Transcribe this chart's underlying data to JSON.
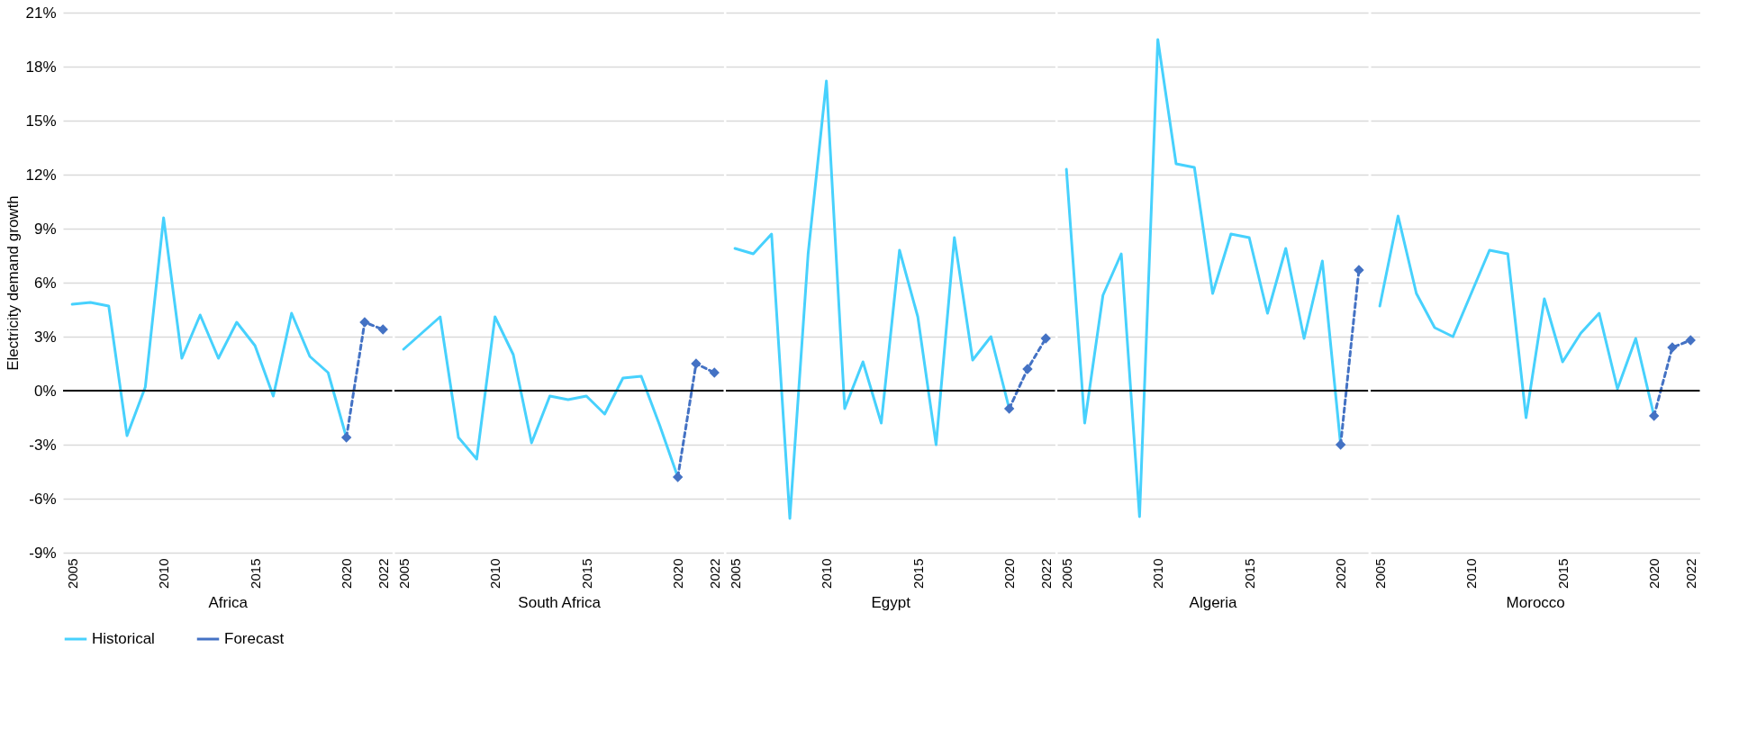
{
  "chart_data": [
    {
      "type": "line",
      "xlabel": "Africa",
      "ylabel": "Electricity demand growth",
      "categories": [
        "2005",
        null,
        null,
        null,
        null,
        "2010",
        null,
        null,
        null,
        null,
        "2015",
        null,
        null,
        null,
        null,
        "2020",
        null,
        "2022"
      ],
      "ylim": [
        -9,
        21
      ],
      "yticks": [
        {
          "value": -9,
          "label": "-9%"
        },
        {
          "value": -6,
          "label": "-6%"
        },
        {
          "value": -3,
          "label": "-3%"
        },
        {
          "value": 0,
          "label": "0%"
        },
        {
          "value": 3,
          "label": "3%"
        },
        {
          "value": 6,
          "label": "6%"
        },
        {
          "value": 9,
          "label": "9%"
        },
        {
          "value": 12,
          "label": "12%"
        },
        {
          "value": 15,
          "label": "15%"
        },
        {
          "value": 18,
          "label": "18%"
        },
        {
          "value": 21,
          "label": "21%"
        }
      ],
      "grid": "y",
      "legend": "bottom",
      "ref_lines": [
        {
          "axis": "y",
          "value": 0,
          "color": "#000000"
        }
      ],
      "series": [
        {
          "name": "Historical",
          "color": "#47d1fd",
          "marker": "none",
          "line_style": "solid",
          "values": [
            4.8,
            4.9,
            4.7,
            -2.5,
            0.2,
            9.6,
            1.8,
            4.2,
            1.8,
            3.8,
            2.5,
            -0.3,
            4.3,
            1.9,
            1.0,
            -2.6,
            null,
            null
          ]
        },
        {
          "name": "Forecast",
          "color": "#4472c4",
          "marker": "diamond",
          "line_style": "dashed",
          "values": [
            null,
            null,
            null,
            null,
            null,
            null,
            null,
            null,
            null,
            null,
            null,
            null,
            null,
            null,
            null,
            -2.6,
            3.8,
            3.4
          ]
        }
      ]
    },
    {
      "type": "line",
      "xlabel": "South Africa",
      "categories": [
        "2005",
        null,
        null,
        null,
        null,
        "2010",
        null,
        null,
        null,
        null,
        "2015",
        null,
        null,
        null,
        null,
        "2020",
        null,
        "2022"
      ],
      "ylim": [
        -9,
        21
      ],
      "yticks": [
        -9,
        -6,
        -3,
        0,
        3,
        6,
        9,
        12,
        15,
        18,
        21
      ],
      "tick_labels": "x",
      "grid": "y",
      "legend": "bottom",
      "ref_lines": [
        {
          "axis": "y",
          "value": 0,
          "color": "#000000"
        }
      ],
      "series": [
        {
          "name": "Historical",
          "color": "#47d1fd",
          "marker": "none",
          "line_style": "solid",
          "values": [
            2.3,
            3.2,
            4.1,
            -2.6,
            -3.8,
            4.1,
            2.0,
            -2.9,
            -0.3,
            -0.5,
            -0.3,
            -1.3,
            0.7,
            0.8,
            -1.9,
            -4.8,
            null,
            null
          ]
        },
        {
          "name": "Forecast",
          "color": "#4472c4",
          "marker": "diamond",
          "line_style": "dashed",
          "values": [
            null,
            null,
            null,
            null,
            null,
            null,
            null,
            null,
            null,
            null,
            null,
            null,
            null,
            null,
            null,
            -4.8,
            1.5,
            1.0
          ]
        }
      ]
    },
    {
      "type": "line",
      "xlabel": "Egypt",
      "categories": [
        "2005",
        null,
        null,
        null,
        null,
        "2010",
        null,
        null,
        null,
        null,
        "2015",
        null,
        null,
        null,
        null,
        "2020",
        null,
        "2022"
      ],
      "ylim": [
        -9,
        21
      ],
      "yticks": [
        -9,
        -6,
        -3,
        0,
        3,
        6,
        9,
        12,
        15,
        18,
        21
      ],
      "tick_labels": "x",
      "grid": "y",
      "legend": "bottom",
      "ref_lines": [
        {
          "axis": "y",
          "value": 0,
          "color": "#000000"
        }
      ],
      "series": [
        {
          "name": "Historical",
          "color": "#47d1fd",
          "marker": "none",
          "line_style": "solid",
          "values": [
            7.9,
            7.6,
            8.7,
            -7.1,
            7.6,
            17.2,
            -1.0,
            1.6,
            -1.8,
            7.8,
            4.1,
            -3.0,
            8.5,
            1.7,
            3.0,
            -1.0,
            null,
            null
          ]
        },
        {
          "name": "Forecast",
          "color": "#4472c4",
          "marker": "diamond",
          "line_style": "dashed",
          "values": [
            null,
            null,
            null,
            null,
            null,
            null,
            null,
            null,
            null,
            null,
            null,
            null,
            null,
            null,
            null,
            -1.0,
            1.2,
            2.9
          ]
        }
      ]
    },
    {
      "type": "line",
      "xlabel": "Algeria",
      "categories": [
        "2005",
        null,
        null,
        null,
        null,
        "2010",
        null,
        null,
        null,
        null,
        "2015",
        null,
        null,
        null,
        null,
        "2020",
        null
      ],
      "ylim": [
        -9,
        21
      ],
      "yticks": [
        -9,
        -6,
        -3,
        0,
        3,
        6,
        9,
        12,
        15,
        18,
        21
      ],
      "tick_labels": "x",
      "grid": "y",
      "legend": "bottom",
      "ref_lines": [
        {
          "axis": "y",
          "value": 0,
          "color": "#000000"
        }
      ],
      "series": [
        {
          "name": "Historical",
          "color": "#47d1fd",
          "marker": "none",
          "line_style": "solid",
          "values": [
            12.3,
            -1.8,
            5.3,
            7.6,
            -7.0,
            19.5,
            12.6,
            12.4,
            5.4,
            8.7,
            8.5,
            4.3,
            7.9,
            2.9,
            7.2,
            -3.0,
            null
          ]
        },
        {
          "name": "Forecast",
          "color": "#4472c4",
          "marker": "diamond",
          "line_style": "dashed",
          "values": [
            null,
            null,
            null,
            null,
            null,
            null,
            null,
            null,
            null,
            null,
            null,
            null,
            null,
            null,
            null,
            -3.0,
            6.7
          ]
        }
      ]
    },
    {
      "type": "line",
      "xlabel": "Morocco",
      "categories": [
        "2005",
        null,
        null,
        null,
        null,
        "2010",
        null,
        null,
        null,
        null,
        "2015",
        null,
        null,
        null,
        null,
        "2020",
        null,
        "2022"
      ],
      "ylim": [
        -9,
        21
      ],
      "yticks": [
        -9,
        -6,
        -3,
        0,
        3,
        6,
        9,
        12,
        15,
        18,
        21
      ],
      "tick_labels": "x",
      "grid": "y",
      "legend": "bottom",
      "ref_lines": [
        {
          "axis": "y",
          "value": 0,
          "color": "#000000"
        }
      ],
      "series": [
        {
          "name": "Historical",
          "color": "#47d1fd",
          "marker": "none",
          "line_style": "solid",
          "values": [
            4.7,
            9.7,
            5.4,
            3.5,
            3.0,
            5.4,
            7.8,
            7.6,
            -1.5,
            5.1,
            1.6,
            3.2,
            4.3,
            0.1,
            2.9,
            -1.4,
            null,
            null
          ]
        },
        {
          "name": "Forecast",
          "color": "#4472c4",
          "marker": "diamond",
          "line_style": "dashed",
          "values": [
            null,
            null,
            null,
            null,
            null,
            null,
            null,
            null,
            null,
            null,
            null,
            null,
            null,
            null,
            null,
            -1.4,
            2.4,
            2.8
          ]
        }
      ]
    }
  ]
}
